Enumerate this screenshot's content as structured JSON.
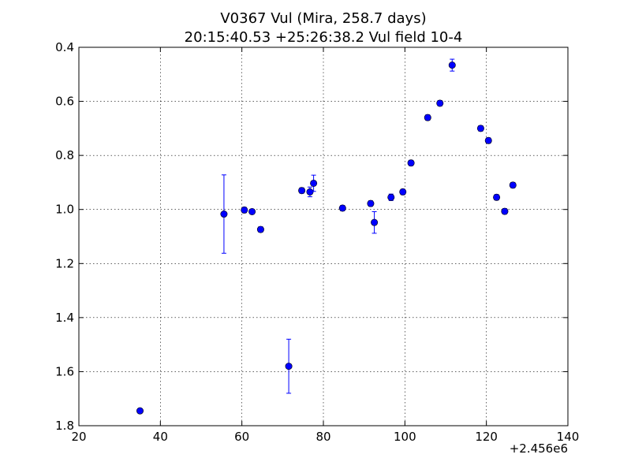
{
  "chart_data": {
    "type": "scatter",
    "title": "V0367 Vul (Mira, 258.7 days)",
    "subtitle": "20:15:40.53 +25:26:38.2 Vul field 10-4",
    "xlabel": "",
    "ylabel": "",
    "x_offset_label": "+2.456e6",
    "xlim": [
      20,
      140
    ],
    "ylim": [
      1.8,
      0.4
    ],
    "y_inverted": true,
    "grid": true,
    "x_ticks": [
      20,
      40,
      60,
      80,
      100,
      120,
      140
    ],
    "y_ticks": [
      0.4,
      0.6,
      0.8,
      1.0,
      1.2,
      1.4,
      1.6,
      1.8
    ],
    "x_tick_labels": [
      "20",
      "40",
      "60",
      "80",
      "100",
      "120",
      "140"
    ],
    "y_tick_labels": [
      "0.4",
      "0.6",
      "0.8",
      "1.0",
      "1.2",
      "1.4",
      "1.6",
      "1.8"
    ],
    "color": "#0000ff",
    "points": [
      {
        "x": 35.0,
        "y": 1.745,
        "err": 0.008
      },
      {
        "x": 55.6,
        "y": 1.017,
        "err": 0.145
      },
      {
        "x": 60.6,
        "y": 1.002,
        "err": 0.01
      },
      {
        "x": 62.5,
        "y": 1.008,
        "err": 0.008
      },
      {
        "x": 64.6,
        "y": 1.074,
        "err": 0.01
      },
      {
        "x": 71.5,
        "y": 1.58,
        "err": 0.1
      },
      {
        "x": 74.7,
        "y": 0.93,
        "err": 0.01
      },
      {
        "x": 76.7,
        "y": 0.935,
        "err": 0.018
      },
      {
        "x": 77.6,
        "y": 0.903,
        "err": 0.03
      },
      {
        "x": 84.7,
        "y": 0.995,
        "err": 0.01
      },
      {
        "x": 91.6,
        "y": 0.978,
        "err": 0.01
      },
      {
        "x": 92.5,
        "y": 1.048,
        "err": 0.04
      },
      {
        "x": 96.6,
        "y": 0.955,
        "err": 0.012
      },
      {
        "x": 99.5,
        "y": 0.935,
        "err": 0.01
      },
      {
        "x": 101.5,
        "y": 0.828,
        "err": 0.01
      },
      {
        "x": 105.6,
        "y": 0.66,
        "err": 0.01
      },
      {
        "x": 108.6,
        "y": 0.607,
        "err": 0.01
      },
      {
        "x": 111.6,
        "y": 0.466,
        "err": 0.022
      },
      {
        "x": 118.6,
        "y": 0.7,
        "err": 0.01
      },
      {
        "x": 120.5,
        "y": 0.745,
        "err": 0.01
      },
      {
        "x": 122.5,
        "y": 0.955,
        "err": 0.01
      },
      {
        "x": 124.5,
        "y": 1.007,
        "err": 0.01
      },
      {
        "x": 126.5,
        "y": 0.91,
        "err": 0.01
      }
    ]
  }
}
